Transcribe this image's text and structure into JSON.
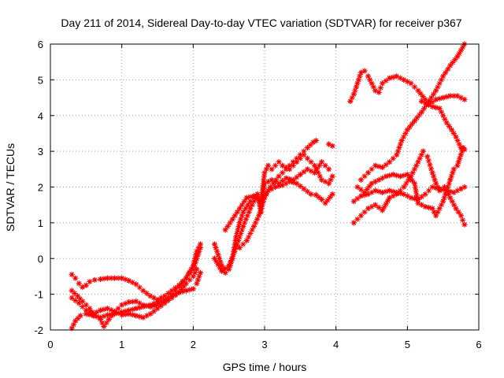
{
  "chart_data": {
    "type": "scatter",
    "title": "Day 211 of 2014, Sidereal Day-to-day VTEC variation (SDTVAR) for receiver p367",
    "xlabel": "GPS time / hours",
    "ylabel": "SDTVAR / TECUs",
    "xlim": [
      0,
      6
    ],
    "ylim": [
      -2,
      6
    ],
    "xticks": [
      0,
      1,
      2,
      3,
      4,
      5,
      6
    ],
    "yticks": [
      -2,
      -1,
      0,
      1,
      2,
      3,
      4,
      5,
      6
    ],
    "grid": true,
    "grid_style": "dotted",
    "marker": "asterisk",
    "colors": {
      "series": "#ff0000",
      "grid": "#a0a0a0",
      "frame": "#000000"
    },
    "series": [
      {
        "values": [
          [
            0.3,
            -1.95
          ],
          [
            0.35,
            -1.75
          ],
          [
            0.42,
            -1.6
          ],
          [
            0.5,
            -1.55
          ],
          [
            0.6,
            -1.6
          ],
          [
            0.7,
            -1.65
          ],
          [
            0.8,
            -1.58
          ],
          [
            0.9,
            -1.55
          ],
          [
            1.0,
            -1.5
          ],
          [
            1.1,
            -1.45
          ],
          [
            1.2,
            -1.4
          ],
          [
            1.3,
            -1.35
          ],
          [
            1.4,
            -1.3
          ],
          [
            1.5,
            -1.22
          ],
          [
            1.6,
            -1.15
          ],
          [
            1.7,
            -1.05
          ],
          [
            1.8,
            -0.95
          ],
          [
            1.9,
            -0.9
          ],
          [
            2.0,
            -0.85
          ],
          [
            2.05,
            -0.7
          ],
          [
            2.1,
            -0.4
          ]
        ]
      },
      {
        "values": [
          [
            0.3,
            -0.45
          ],
          [
            0.35,
            -0.55
          ],
          [
            0.4,
            -0.7
          ],
          [
            0.45,
            -0.8
          ],
          [
            0.5,
            -0.75
          ],
          [
            0.55,
            -0.65
          ],
          [
            0.62,
            -0.6
          ],
          [
            0.7,
            -0.58
          ],
          [
            0.8,
            -0.55
          ],
          [
            0.9,
            -0.55
          ],
          [
            1.0,
            -0.55
          ],
          [
            1.1,
            -0.62
          ],
          [
            1.2,
            -0.72
          ],
          [
            1.3,
            -0.9
          ],
          [
            1.4,
            -1.05
          ],
          [
            1.5,
            -1.15
          ],
          [
            1.6,
            -1.05
          ],
          [
            1.7,
            -0.9
          ],
          [
            1.8,
            -0.75
          ],
          [
            1.9,
            -0.55
          ],
          [
            2.0,
            -0.2
          ],
          [
            2.05,
            0.2
          ],
          [
            2.1,
            0.4
          ]
        ]
      },
      {
        "values": [
          [
            0.3,
            -0.9
          ],
          [
            0.38,
            -1.05
          ],
          [
            0.45,
            -1.2
          ],
          [
            0.55,
            -1.4
          ],
          [
            0.62,
            -1.6
          ],
          [
            0.7,
            -1.7
          ],
          [
            0.75,
            -1.9
          ],
          [
            0.82,
            -1.7
          ],
          [
            0.9,
            -1.5
          ],
          [
            1.0,
            -1.3
          ],
          [
            1.1,
            -1.22
          ],
          [
            1.2,
            -1.2
          ],
          [
            1.3,
            -1.3
          ],
          [
            1.4,
            -1.35
          ],
          [
            1.5,
            -1.3
          ],
          [
            1.6,
            -1.2
          ],
          [
            1.7,
            -1.0
          ],
          [
            1.8,
            -0.8
          ],
          [
            1.9,
            -0.55
          ],
          [
            1.95,
            -0.4
          ],
          [
            2.0,
            -0.3
          ],
          [
            2.05,
            0.0
          ],
          [
            2.1,
            0.3
          ]
        ]
      },
      {
        "values": [
          [
            0.3,
            -1.1
          ],
          [
            0.4,
            -1.25
          ],
          [
            0.5,
            -1.45
          ],
          [
            0.6,
            -1.55
          ],
          [
            0.7,
            -1.45
          ],
          [
            0.8,
            -1.4
          ],
          [
            0.9,
            -1.48
          ],
          [
            1.0,
            -1.58
          ],
          [
            1.1,
            -1.55
          ],
          [
            1.2,
            -1.6
          ],
          [
            1.3,
            -1.65
          ],
          [
            1.4,
            -1.55
          ],
          [
            1.5,
            -1.4
          ],
          [
            1.6,
            -1.25
          ],
          [
            1.7,
            -1.1
          ],
          [
            1.8,
            -0.95
          ],
          [
            1.9,
            -0.7
          ],
          [
            2.0,
            -0.5
          ],
          [
            2.05,
            -0.3
          ]
        ]
      },
      {
        "values": [
          [
            2.3,
            0.4
          ],
          [
            2.35,
            0.1
          ],
          [
            2.4,
            -0.2
          ],
          [
            2.45,
            -0.4
          ],
          [
            2.5,
            -0.3
          ],
          [
            2.55,
            0.0
          ],
          [
            2.6,
            0.6
          ],
          [
            2.65,
            1.0
          ],
          [
            2.7,
            1.3
          ],
          [
            2.8,
            1.6
          ],
          [
            2.9,
            1.8
          ],
          [
            2.98,
            1.72
          ],
          [
            3.05,
            1.9
          ],
          [
            3.15,
            2.0
          ],
          [
            3.25,
            2.05
          ],
          [
            3.35,
            2.15
          ],
          [
            3.45,
            2.1
          ],
          [
            3.55,
            1.95
          ],
          [
            3.65,
            1.8
          ],
          [
            3.72,
            1.78
          ],
          [
            3.8,
            1.65
          ],
          [
            3.85,
            1.55
          ],
          [
            3.95,
            1.8
          ]
        ]
      },
      {
        "values": [
          [
            2.3,
            0.0
          ],
          [
            2.4,
            -0.35
          ],
          [
            2.5,
            -0.2
          ],
          [
            2.6,
            0.3
          ],
          [
            2.7,
            0.9
          ],
          [
            2.8,
            1.4
          ],
          [
            2.9,
            1.8
          ],
          [
            2.95,
            1.3
          ],
          [
            3.0,
            2.1
          ],
          [
            3.1,
            2.2
          ],
          [
            3.2,
            2.1
          ],
          [
            3.3,
            2.25
          ],
          [
            3.4,
            2.2
          ],
          [
            3.5,
            2.35
          ],
          [
            3.6,
            2.5
          ],
          [
            3.7,
            2.4
          ],
          [
            3.8,
            2.7
          ],
          [
            3.85,
            2.6
          ],
          [
            3.9,
            2.5
          ]
        ]
      },
      {
        "values": [
          [
            2.45,
            0.8
          ],
          [
            2.55,
            1.1
          ],
          [
            2.65,
            1.4
          ],
          [
            2.75,
            1.7
          ],
          [
            2.85,
            1.75
          ],
          [
            2.95,
            1.6
          ],
          [
            3.0,
            2.4
          ],
          [
            3.05,
            2.6
          ],
          [
            3.1,
            2.5
          ],
          [
            3.2,
            2.7
          ],
          [
            3.25,
            2.6
          ],
          [
            3.35,
            2.5
          ],
          [
            3.45,
            2.7
          ],
          [
            3.55,
            2.9
          ],
          [
            3.6,
            2.8
          ],
          [
            3.7,
            2.6
          ],
          [
            3.8,
            2.2
          ],
          [
            3.9,
            2.1
          ],
          [
            3.95,
            2.3
          ]
        ]
      },
      {
        "values": [
          [
            2.65,
            0.3
          ],
          [
            2.75,
            0.5
          ],
          [
            2.85,
            0.9
          ],
          [
            2.92,
            1.2
          ],
          [
            3.0,
            1.7
          ],
          [
            3.08,
            2.0
          ],
          [
            3.2,
            2.3
          ],
          [
            3.3,
            2.5
          ],
          [
            3.4,
            2.7
          ],
          [
            3.5,
            2.9
          ],
          [
            3.6,
            3.1
          ],
          [
            3.68,
            3.25
          ],
          [
            3.72,
            3.3
          ]
        ]
      },
      {
        "values": [
          [
            3.9,
            3.2
          ],
          [
            3.95,
            3.15
          ]
        ]
      },
      {
        "values": [
          [
            4.2,
            4.4
          ],
          [
            4.25,
            4.6
          ],
          [
            4.3,
            4.9
          ],
          [
            4.35,
            5.2
          ],
          [
            4.4,
            5.25
          ],
          [
            4.45,
            5.1
          ],
          [
            4.5,
            4.9
          ],
          [
            4.55,
            4.7
          ],
          [
            4.6,
            4.65
          ],
          [
            4.65,
            4.9
          ],
          [
            4.75,
            5.05
          ],
          [
            4.85,
            5.1
          ],
          [
            4.95,
            5.0
          ],
          [
            5.05,
            4.9
          ],
          [
            5.15,
            4.7
          ],
          [
            5.25,
            4.45
          ],
          [
            5.35,
            4.25
          ],
          [
            5.45,
            4.2
          ],
          [
            5.55,
            3.8
          ],
          [
            5.62,
            3.6
          ],
          [
            5.68,
            3.4
          ],
          [
            5.75,
            3.1
          ],
          [
            5.8,
            3.05
          ]
        ]
      },
      {
        "values": [
          [
            4.35,
            2.2
          ],
          [
            4.45,
            2.4
          ],
          [
            4.55,
            2.6
          ],
          [
            4.65,
            2.55
          ],
          [
            4.75,
            2.7
          ],
          [
            4.85,
            2.9
          ],
          [
            4.92,
            3.3
          ],
          [
            5.0,
            3.6
          ],
          [
            5.1,
            3.85
          ],
          [
            5.2,
            4.1
          ],
          [
            5.3,
            4.4
          ],
          [
            5.4,
            4.7
          ],
          [
            5.5,
            5.1
          ],
          [
            5.6,
            5.4
          ],
          [
            5.7,
            5.65
          ],
          [
            5.8,
            6.0
          ]
        ]
      },
      {
        "values": [
          [
            4.25,
            1.6
          ],
          [
            4.35,
            1.75
          ],
          [
            4.45,
            1.8
          ],
          [
            4.55,
            1.9
          ],
          [
            4.65,
            1.85
          ],
          [
            4.75,
            1.9
          ],
          [
            4.85,
            1.85
          ],
          [
            4.95,
            1.8
          ],
          [
            5.05,
            1.7
          ],
          [
            5.15,
            1.65
          ],
          [
            5.25,
            1.8
          ],
          [
            5.35,
            2.0
          ],
          [
            5.45,
            1.95
          ],
          [
            5.55,
            1.9
          ],
          [
            5.65,
            1.85
          ],
          [
            5.75,
            1.95
          ],
          [
            5.8,
            2.0
          ]
        ]
      },
      {
        "values": [
          [
            4.25,
            1.0
          ],
          [
            4.35,
            1.2
          ],
          [
            4.45,
            1.4
          ],
          [
            4.55,
            1.5
          ],
          [
            4.65,
            1.35
          ],
          [
            4.75,
            1.7
          ],
          [
            4.85,
            1.8
          ],
          [
            4.95,
            2.0
          ],
          [
            5.05,
            2.3
          ],
          [
            5.15,
            2.7
          ],
          [
            5.22,
            3.0
          ],
          [
            5.28,
            2.85
          ],
          [
            5.35,
            2.4
          ],
          [
            5.4,
            2.1
          ],
          [
            5.45,
            1.9
          ],
          [
            5.52,
            2.0
          ],
          [
            5.6,
            1.7
          ],
          [
            5.68,
            1.4
          ],
          [
            5.75,
            1.2
          ],
          [
            5.8,
            0.95
          ]
        ]
      },
      {
        "values": [
          [
            4.3,
            2.0
          ],
          [
            4.4,
            1.85
          ],
          [
            4.5,
            2.1
          ],
          [
            4.6,
            2.2
          ],
          [
            4.7,
            2.3
          ],
          [
            4.8,
            2.35
          ],
          [
            4.9,
            2.3
          ],
          [
            5.0,
            2.35
          ],
          [
            5.1,
            2.1
          ],
          [
            5.15,
            1.55
          ],
          [
            5.25,
            1.45
          ],
          [
            5.35,
            1.4
          ],
          [
            5.4,
            1.2
          ],
          [
            5.5,
            1.6
          ],
          [
            5.6,
            2.2
          ],
          [
            5.65,
            2.5
          ],
          [
            5.7,
            2.6
          ],
          [
            5.78,
            3.1
          ]
        ]
      },
      {
        "values": [
          [
            5.2,
            4.4
          ],
          [
            5.3,
            4.3
          ],
          [
            5.4,
            4.45
          ],
          [
            5.5,
            4.5
          ],
          [
            5.6,
            4.55
          ],
          [
            5.7,
            4.55
          ],
          [
            5.8,
            4.45
          ]
        ]
      }
    ]
  }
}
